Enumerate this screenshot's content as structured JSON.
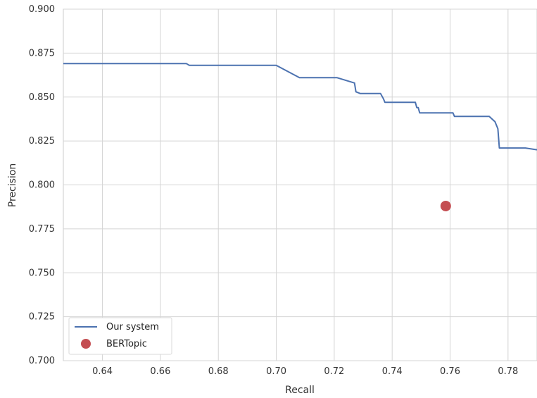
{
  "chart_data": {
    "type": "line",
    "xlabel": "Recall",
    "ylabel": "Precision",
    "xlim": [
      0.6265,
      0.79
    ],
    "ylim": [
      0.7,
      0.9
    ],
    "x_ticks": [
      "0.64",
      "0.66",
      "0.68",
      "0.70",
      "0.72",
      "0.74",
      "0.76",
      "0.78"
    ],
    "y_ticks": [
      "0.700",
      "0.725",
      "0.750",
      "0.775",
      "0.800",
      "0.825",
      "0.850",
      "0.875",
      "0.900"
    ],
    "grid": true,
    "legend_position": "lower-left",
    "series": [
      {
        "name": "Our system",
        "kind": "line",
        "color": "#4c72b0",
        "x": [
          0.6265,
          0.669,
          0.67,
          0.7,
          0.708,
          0.721,
          0.727,
          0.7275,
          0.729,
          0.736,
          0.737,
          0.7375,
          0.748,
          0.7485,
          0.749,
          0.7495,
          0.7505,
          0.761,
          0.7615,
          0.7735,
          0.7755,
          0.7765,
          0.777,
          0.786,
          0.79
        ],
        "y": [
          0.869,
          0.869,
          0.868,
          0.868,
          0.861,
          0.861,
          0.858,
          0.853,
          0.852,
          0.852,
          0.849,
          0.847,
          0.847,
          0.844,
          0.844,
          0.841,
          0.841,
          0.841,
          0.839,
          0.839,
          0.836,
          0.832,
          0.821,
          0.821,
          0.82
        ]
      },
      {
        "name": "BERTopic",
        "kind": "point",
        "color": "#c44e52",
        "x": [
          0.7585
        ],
        "y": [
          0.788
        ]
      }
    ]
  }
}
